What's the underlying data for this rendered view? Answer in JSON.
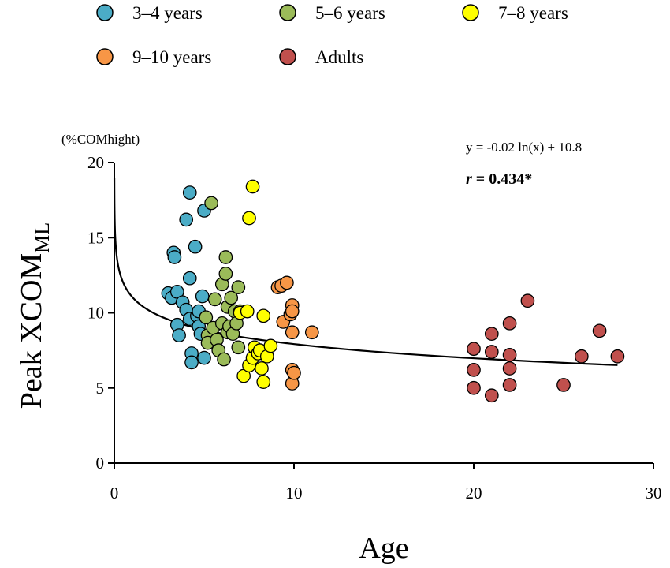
{
  "chart_data": {
    "type": "scatter",
    "title": "",
    "xlabel": "Age",
    "ylabel_main": "Peak XCOM",
    "ylabel_sub": "ML",
    "y_unit": "(%COMhight)",
    "xlim": [
      0,
      30
    ],
    "ylim": [
      0,
      20
    ],
    "xticks": [
      "0",
      "10",
      "20",
      "30"
    ],
    "yticks": [
      "0",
      "5",
      "10",
      "15",
      "20"
    ],
    "grid": false,
    "legend_position": "top",
    "equation": "y = -0.02 ln(x) + 10.8",
    "r_symbol": "r",
    "r_rest": " = 0.434*",
    "series": [
      {
        "name": "3–4 years",
        "color": "#4bacc6",
        "points": [
          [
            3.0,
            11.3
          ],
          [
            3.2,
            11.0
          ],
          [
            3.3,
            14.0
          ],
          [
            3.35,
            13.7
          ],
          [
            3.5,
            11.4
          ],
          [
            3.5,
            9.2
          ],
          [
            3.6,
            8.5
          ],
          [
            3.8,
            10.7
          ],
          [
            4.0,
            16.2
          ],
          [
            4.0,
            10.2
          ],
          [
            4.2,
            18.0
          ],
          [
            4.2,
            12.3
          ],
          [
            4.2,
            9.6
          ],
          [
            4.3,
            7.3
          ],
          [
            4.3,
            6.7
          ],
          [
            4.5,
            14.4
          ],
          [
            4.6,
            9.8
          ],
          [
            4.7,
            10.1
          ],
          [
            4.7,
            9.1
          ],
          [
            4.8,
            8.6
          ],
          [
            4.9,
            11.1
          ],
          [
            5.0,
            7.0
          ],
          [
            5.0,
            16.8
          ]
        ]
      },
      {
        "name": "5–6 years",
        "color": "#9bbb59",
        "points": [
          [
            5.1,
            9.7
          ],
          [
            5.2,
            8.5
          ],
          [
            5.2,
            8.0
          ],
          [
            5.4,
            17.3
          ],
          [
            5.5,
            9.0
          ],
          [
            5.6,
            10.9
          ],
          [
            5.7,
            8.2
          ],
          [
            5.8,
            7.5
          ],
          [
            6.0,
            11.9
          ],
          [
            6.0,
            9.3
          ],
          [
            6.1,
            6.9
          ],
          [
            6.2,
            13.7
          ],
          [
            6.2,
            12.6
          ],
          [
            6.3,
            10.4
          ],
          [
            6.3,
            8.7
          ],
          [
            6.4,
            9.1
          ],
          [
            6.5,
            11.0
          ],
          [
            6.6,
            8.6
          ],
          [
            6.7,
            10.1
          ],
          [
            6.8,
            9.3
          ],
          [
            6.9,
            11.7
          ],
          [
            6.9,
            7.7
          ],
          [
            7.0,
            10.1
          ]
        ]
      },
      {
        "name": "7–8 years",
        "color": "#ffff00",
        "points": [
          [
            7.0,
            10.0
          ],
          [
            7.2,
            5.8
          ],
          [
            7.4,
            10.1
          ],
          [
            7.5,
            16.3
          ],
          [
            7.5,
            6.5
          ],
          [
            7.7,
            18.4
          ],
          [
            7.7,
            7.0
          ],
          [
            7.8,
            7.7
          ],
          [
            8.0,
            7.3
          ],
          [
            8.1,
            7.5
          ],
          [
            8.2,
            6.3
          ],
          [
            8.3,
            9.8
          ],
          [
            8.3,
            5.4
          ],
          [
            8.5,
            7.1
          ],
          [
            8.7,
            7.8
          ]
        ]
      },
      {
        "name": "9–10 years",
        "color": "#f79646",
        "points": [
          [
            9.1,
            11.7
          ],
          [
            9.3,
            11.8
          ],
          [
            9.4,
            9.4
          ],
          [
            9.6,
            12.0
          ],
          [
            9.8,
            9.9
          ],
          [
            9.9,
            10.5
          ],
          [
            9.9,
            10.1
          ],
          [
            9.9,
            8.7
          ],
          [
            9.9,
            6.2
          ],
          [
            9.9,
            5.3
          ],
          [
            10.0,
            6.0
          ],
          [
            11.0,
            8.7
          ]
        ]
      },
      {
        "name": "Adults",
        "color": "#c0504d",
        "points": [
          [
            20,
            7.6
          ],
          [
            20,
            6.2
          ],
          [
            20,
            5.0
          ],
          [
            21,
            8.6
          ],
          [
            21,
            7.4
          ],
          [
            21,
            4.5
          ],
          [
            22,
            9.3
          ],
          [
            22,
            7.2
          ],
          [
            22,
            6.3
          ],
          [
            22,
            5.2
          ],
          [
            23,
            10.8
          ],
          [
            25,
            5.2
          ],
          [
            26,
            7.1
          ],
          [
            27,
            8.8
          ],
          [
            28,
            7.1
          ]
        ]
      }
    ]
  }
}
